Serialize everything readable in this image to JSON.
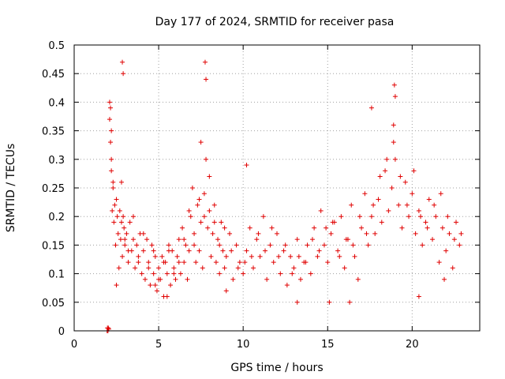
{
  "chart_data": {
    "type": "scatter",
    "title": "Day 177 of 2024, SRMTID for receiver pasa",
    "xlabel": "GPS time / hours",
    "ylabel": "SRMTID / TECUs",
    "xlim": [
      0,
      24
    ],
    "ylim": [
      0,
      0.5
    ],
    "xticks": [
      0,
      5,
      10,
      15,
      20
    ],
    "yticks": [
      0,
      0.05,
      0.1,
      0.15,
      0.2,
      0.25,
      0.3,
      0.35,
      0.4,
      0.45,
      0.5
    ],
    "xtick_labels": [
      "0",
      "5",
      "10",
      "15",
      "20"
    ],
    "ytick_labels": [
      "0",
      "0.05",
      "0.1",
      "0.15",
      "0.2",
      "0.25",
      "0.3",
      "0.35",
      "0.4",
      "0.45",
      "0.5"
    ],
    "grid": true,
    "marker": "plus",
    "series": [
      {
        "name": "SRMTID",
        "color": "#e00000",
        "x": [
          1.95,
          1.97,
          2.0,
          2.02,
          2.05,
          2.1,
          2.15,
          2.2,
          2.25,
          2.3,
          2.35,
          2.4,
          2.45,
          2.5,
          2.55,
          2.6,
          2.65,
          2.7,
          2.75,
          2.8,
          2.85,
          2.9,
          2.95,
          3.0,
          3.1,
          3.2,
          3.3,
          3.4,
          3.5,
          3.6,
          3.7,
          3.8,
          3.9,
          4.0,
          4.1,
          4.2,
          4.3,
          4.4,
          4.5,
          4.6,
          4.7,
          4.8,
          4.9,
          5.0,
          5.1,
          5.2,
          5.3,
          5.4,
          5.5,
          5.6,
          5.7,
          5.8,
          5.9,
          6.0,
          6.1,
          6.2,
          6.3,
          6.4,
          6.5,
          6.6,
          6.7,
          6.8,
          6.9,
          7.0,
          7.1,
          7.2,
          7.3,
          7.4,
          7.5,
          7.6,
          7.7,
          7.8,
          7.9,
          8.0,
          8.1,
          8.2,
          8.3,
          8.4,
          8.5,
          8.6,
          8.7,
          8.8,
          8.9,
          9.0,
          9.2,
          9.4,
          9.6,
          9.8,
          10.0,
          10.2,
          10.4,
          10.6,
          10.8,
          11.0,
          11.2,
          11.4,
          11.6,
          11.8,
          12.0,
          12.2,
          12.4,
          12.6,
          12.8,
          13.0,
          13.2,
          13.4,
          13.6,
          13.8,
          14.0,
          14.2,
          14.4,
          14.6,
          14.8,
          15.0,
          15.2,
          15.4,
          15.6,
          15.8,
          16.0,
          16.2,
          16.4,
          16.6,
          16.8,
          17.0,
          17.2,
          17.4,
          17.6,
          17.8,
          18.0,
          18.2,
          18.4,
          18.6,
          18.8,
          19.0,
          19.2,
          19.4,
          19.6,
          19.8,
          20.0,
          20.2,
          20.4,
          20.6,
          20.8,
          21.0,
          21.2,
          21.4,
          21.6,
          21.8,
          22.0,
          22.2,
          22.4,
          22.6,
          22.8,
          2.1,
          2.2,
          2.3,
          2.5,
          2.8,
          3.0,
          3.2,
          3.5,
          3.8,
          4.1,
          4.4,
          4.7,
          5.0,
          5.3,
          5.6,
          5.9,
          6.2,
          6.5,
          6.8,
          7.1,
          7.4,
          7.7,
          8.0,
          8.3,
          8.6,
          8.9,
          9.3,
          9.7,
          10.1,
          10.5,
          10.9,
          11.3,
          11.7,
          12.1,
          12.5,
          12.9,
          13.3,
          13.7,
          14.1,
          14.5,
          14.9,
          15.3,
          15.7,
          16.1,
          16.5,
          16.9,
          17.3,
          17.7,
          18.1,
          18.5,
          18.9,
          19.3,
          19.7,
          20.1,
          20.5,
          20.9,
          21.3,
          21.7,
          22.1,
          22.5,
          22.9,
          2.85,
          2.9,
          7.75,
          7.8,
          18.95,
          19.0,
          2.15,
          2.2,
          7.5,
          18.9,
          17.6,
          10.2,
          5.5,
          13.2,
          15.1,
          20.4,
          21.9,
          9.0,
          4.8,
          16.3
        ],
        "y": [
          0.0,
          0.005,
          0.0,
          0.005,
          0.003,
          0.4,
          0.33,
          0.28,
          0.21,
          0.26,
          0.19,
          0.22,
          0.15,
          0.08,
          0.2,
          0.17,
          0.11,
          0.21,
          0.16,
          0.19,
          0.13,
          0.2,
          0.18,
          0.15,
          0.17,
          0.12,
          0.19,
          0.14,
          0.16,
          0.11,
          0.15,
          0.13,
          0.17,
          0.1,
          0.14,
          0.09,
          0.16,
          0.12,
          0.08,
          0.15,
          0.1,
          0.13,
          0.07,
          0.11,
          0.09,
          0.13,
          0.06,
          0.12,
          0.1,
          0.15,
          0.08,
          0.14,
          0.11,
          0.09,
          0.13,
          0.16,
          0.1,
          0.18,
          0.12,
          0.15,
          0.09,
          0.14,
          0.2,
          0.25,
          0.17,
          0.12,
          0.22,
          0.14,
          0.19,
          0.11,
          0.24,
          0.3,
          0.18,
          0.21,
          0.13,
          0.17,
          0.22,
          0.12,
          0.16,
          0.1,
          0.19,
          0.14,
          0.11,
          0.13,
          0.17,
          0.09,
          0.15,
          0.12,
          0.1,
          0.14,
          0.18,
          0.11,
          0.16,
          0.13,
          0.2,
          0.09,
          0.15,
          0.12,
          0.17,
          0.1,
          0.14,
          0.08,
          0.13,
          0.11,
          0.16,
          0.09,
          0.12,
          0.15,
          0.1,
          0.18,
          0.13,
          0.21,
          0.15,
          0.12,
          0.17,
          0.19,
          0.14,
          0.2,
          0.11,
          0.16,
          0.22,
          0.13,
          0.09,
          0.18,
          0.24,
          0.15,
          0.2,
          0.17,
          0.23,
          0.19,
          0.28,
          0.21,
          0.25,
          0.3,
          0.22,
          0.18,
          0.26,
          0.2,
          0.24,
          0.17,
          0.21,
          0.15,
          0.19,
          0.23,
          0.16,
          0.2,
          0.12,
          0.18,
          0.14,
          0.17,
          0.11,
          0.19,
          0.15,
          0.37,
          0.3,
          0.25,
          0.23,
          0.26,
          0.16,
          0.14,
          0.2,
          0.12,
          0.17,
          0.11,
          0.14,
          0.09,
          0.12,
          0.14,
          0.1,
          0.12,
          0.16,
          0.21,
          0.15,
          0.23,
          0.2,
          0.27,
          0.19,
          0.15,
          0.18,
          0.14,
          0.11,
          0.12,
          0.13,
          0.17,
          0.14,
          0.18,
          0.13,
          0.15,
          0.1,
          0.13,
          0.12,
          0.16,
          0.14,
          0.18,
          0.19,
          0.13,
          0.16,
          0.15,
          0.2,
          0.17,
          0.22,
          0.27,
          0.3,
          0.33,
          0.27,
          0.22,
          0.28,
          0.2,
          0.18,
          0.22,
          0.24,
          0.2,
          0.16,
          0.17,
          0.47,
          0.45,
          0.47,
          0.44,
          0.43,
          0.41,
          0.39,
          0.35,
          0.33,
          0.36,
          0.39,
          0.29,
          0.06,
          0.05,
          0.05,
          0.06,
          0.09,
          0.07,
          0.08,
          0.05
        ]
      }
    ]
  }
}
